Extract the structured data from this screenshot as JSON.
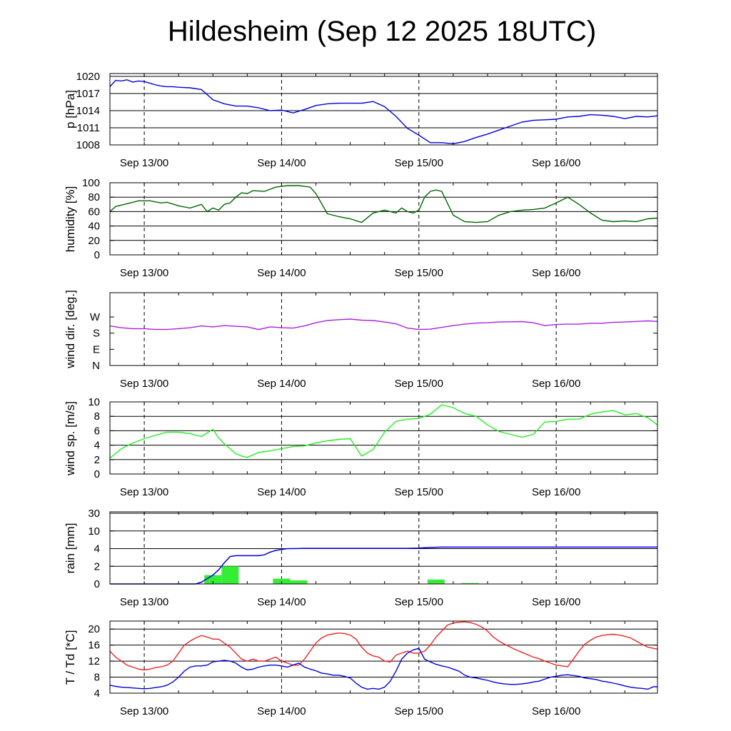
{
  "page": {
    "title": "Hildesheim (Sep 12 2025 18UTC)"
  },
  "x_tick_labels": [
    "Sep 13/00",
    "Sep 14/00",
    "Sep 15/00",
    "Sep 16/00"
  ],
  "chart_data": [
    {
      "id": "pressure",
      "type": "line",
      "ylabel": "p [hPa]",
      "ylim": [
        1008,
        1020.5
      ],
      "yticks": [
        1008,
        1011,
        1014,
        1017,
        1020
      ],
      "yticklabels": [
        "1008",
        "1011",
        "1014",
        "1017",
        "1020"
      ],
      "grid": true,
      "color": "#0000dd",
      "x_unit": "hours since Sep 12 18UTC",
      "series": [
        {
          "x": [
            0,
            1,
            2,
            3,
            4,
            5,
            6,
            7,
            8,
            9,
            10,
            11,
            12,
            14,
            16,
            18,
            20,
            22,
            24,
            26,
            28,
            30,
            32,
            34,
            36,
            38,
            40,
            42,
            44,
            46,
            48,
            50,
            52,
            54,
            56,
            58,
            60,
            62,
            64,
            66,
            68,
            70,
            72,
            74,
            76,
            78,
            80,
            82,
            84,
            86,
            88,
            90,
            92,
            94,
            95.7
          ],
          "y": [
            1018.2,
            1019.3,
            1019.2,
            1019.4,
            1019.0,
            1019.2,
            1019.1,
            1018.8,
            1018.5,
            1018.3,
            1018.2,
            1018.2,
            1018.1,
            1018.0,
            1017.7,
            1015.9,
            1015.2,
            1014.8,
            1014.8,
            1014.5,
            1014.0,
            1014.1,
            1013.6,
            1014.2,
            1014.9,
            1015.2,
            1015.3,
            1015.3,
            1015.3,
            1015.6,
            1014.7,
            1013.0,
            1010.9,
            1009.7,
            1008.4,
            1008.4,
            1008.2,
            1008.6,
            1009.3,
            1009.9,
            1010.6,
            1011.3,
            1012.0,
            1012.3,
            1012.4,
            1012.5,
            1012.9,
            1013.0,
            1013.3,
            1013.2,
            1013.0,
            1012.6,
            1013.0,
            1012.9,
            1013.1
          ]
        }
      ]
    },
    {
      "id": "humidity",
      "type": "line",
      "ylabel": "humidity [%]",
      "ylim": [
        0,
        100
      ],
      "yticks": [
        0,
        20,
        40,
        60,
        80,
        100
      ],
      "yticklabels": [
        "0",
        "20",
        "40",
        "60",
        "80",
        "100"
      ],
      "grid": true,
      "color": "#006600",
      "series": [
        {
          "x": [
            0,
            1,
            3,
            5,
            7,
            9,
            10,
            12,
            14,
            16,
            17,
            18,
            19,
            20,
            21,
            22,
            23,
            24,
            25,
            27,
            29,
            31,
            33,
            35,
            36,
            38,
            40,
            42,
            44,
            46,
            48,
            50,
            51,
            52,
            53,
            54,
            55,
            56,
            57,
            58,
            60,
            62,
            64,
            66,
            68,
            70,
            72,
            74,
            76,
            78,
            80,
            82,
            84,
            86,
            88,
            90,
            92,
            94,
            95.7
          ],
          "y": [
            60,
            67,
            71,
            75,
            75,
            72,
            73,
            68,
            65,
            70,
            60,
            65,
            62,
            70,
            72,
            80,
            86,
            85,
            89,
            88,
            94,
            96,
            96,
            94,
            85,
            57,
            53,
            50,
            45,
            58,
            62,
            58,
            65,
            60,
            58,
            62,
            80,
            88,
            90,
            88,
            55,
            46,
            45,
            46,
            55,
            60,
            62,
            63,
            65,
            72,
            80,
            70,
            58,
            48,
            46,
            47,
            46,
            50,
            51
          ]
        }
      ]
    },
    {
      "id": "wind_direction",
      "type": "line",
      "ylabel": "wind dir. [deg.]",
      "ylim": [
        0,
        405
      ],
      "yticks": [
        0,
        90,
        180,
        270
      ],
      "yticklabels": [
        "N",
        "E",
        "S",
        "W"
      ],
      "grid": false,
      "color": "#aa22dd",
      "series": [
        {
          "x": [
            0,
            2,
            4,
            6,
            8,
            10,
            12,
            14,
            16,
            18,
            20,
            22,
            24,
            26,
            28,
            30,
            32,
            34,
            36,
            38,
            40,
            42,
            44,
            46,
            48,
            50,
            52,
            54,
            56,
            58,
            60,
            62,
            64,
            66,
            68,
            70,
            72,
            74,
            76,
            78,
            80,
            82,
            84,
            86,
            88,
            90,
            92,
            94,
            95.7
          ],
          "y": [
            220,
            210,
            205,
            205,
            200,
            200,
            205,
            210,
            220,
            215,
            222,
            218,
            215,
            200,
            215,
            210,
            208,
            220,
            238,
            250,
            255,
            258,
            252,
            250,
            242,
            232,
            208,
            200,
            202,
            212,
            222,
            230,
            236,
            238,
            242,
            243,
            244,
            238,
            222,
            228,
            230,
            230,
            235,
            235,
            240,
            242,
            245,
            248,
            245
          ]
        }
      ]
    },
    {
      "id": "wind_speed",
      "type": "line",
      "ylabel": "wind sp. [m/s]",
      "ylim": [
        0,
        10
      ],
      "yticks": [
        0,
        2,
        4,
        6,
        8,
        10
      ],
      "yticklabels": [
        "0",
        "2",
        "4",
        "6",
        "8",
        "10"
      ],
      "grid": true,
      "color": "#22ee22",
      "series": [
        {
          "x": [
            0,
            2,
            4,
            6,
            8,
            10,
            12,
            14,
            16,
            17,
            18,
            19,
            20,
            21,
            22,
            23,
            24,
            26,
            28,
            30,
            32,
            34,
            36,
            38,
            40,
            42,
            44,
            46,
            48,
            50,
            52,
            54,
            56,
            58,
            60,
            62,
            64,
            66,
            68,
            70,
            72,
            74,
            76,
            78,
            80,
            82,
            84,
            86,
            88,
            90,
            92,
            94,
            95.7
          ],
          "y": [
            2.2,
            3.5,
            4.3,
            4.9,
            5.4,
            5.8,
            5.8,
            5.6,
            5.2,
            5.7,
            6.2,
            5.0,
            4.2,
            3.5,
            2.8,
            2.5,
            2.3,
            3.0,
            3.2,
            3.5,
            3.8,
            3.9,
            4.3,
            4.6,
            4.8,
            4.9,
            2.5,
            3.4,
            5.8,
            7.3,
            7.6,
            7.7,
            8.3,
            9.6,
            9.2,
            8.4,
            8.0,
            6.8,
            5.9,
            5.5,
            5.1,
            5.5,
            7.2,
            7.3,
            7.6,
            7.6,
            8.3,
            8.6,
            8.8,
            8.2,
            8.4,
            7.8,
            6.8
          ]
        }
      ]
    },
    {
      "id": "rain",
      "type": "bar+line",
      "ylabel": "rain [mm]",
      "y_scale": "piecewise",
      "yticks": [
        0,
        2,
        4,
        10,
        30
      ],
      "yticklabels": [
        "0",
        "2",
        "4",
        "10",
        "30"
      ],
      "grid": true,
      "bar_color": "#33ee33",
      "line_color": "#0000dd",
      "bars": [
        {
          "x0": 16.5,
          "x1": 19.5,
          "value": 1.0
        },
        {
          "x0": 19.5,
          "x1": 22.5,
          "value": 2.0
        },
        {
          "x0": 28.5,
          "x1": 31.5,
          "value": 0.6
        },
        {
          "x0": 31.5,
          "x1": 34.5,
          "value": 0.4
        },
        {
          "x0": 55.5,
          "x1": 58.5,
          "value": 0.5
        },
        {
          "x0": 61.5,
          "x1": 64.5,
          "value": 0.1
        }
      ],
      "cumulative": {
        "x": [
          0,
          9,
          15,
          16,
          17,
          18,
          19,
          20,
          21,
          22,
          23,
          24,
          25,
          26,
          27,
          28,
          29,
          30,
          31,
          32,
          34,
          40,
          50,
          52,
          54,
          55,
          56,
          58,
          60,
          70,
          80,
          95.7
        ],
        "y": [
          0,
          0,
          0,
          0.2,
          0.6,
          1.0,
          1.6,
          2.4,
          3.1,
          3.2,
          3.2,
          3.2,
          3.2,
          3.2,
          3.3,
          3.6,
          3.8,
          3.9,
          4.0,
          4.0,
          4.1,
          4.1,
          4.1,
          4.1,
          4.2,
          4.3,
          4.4,
          4.5,
          4.5,
          4.5,
          4.5,
          4.5
        ]
      }
    },
    {
      "id": "temperature",
      "type": "line",
      "ylabel": "T / Td [*C]",
      "ylim": [
        4,
        22
      ],
      "yticks": [
        4,
        8,
        12,
        16,
        20
      ],
      "yticklabels": [
        "4",
        "8",
        "12",
        "16",
        "20"
      ],
      "grid": true,
      "series": [
        {
          "name": "T",
          "color": "#ee2222",
          "x": [
            0,
            1,
            2,
            3,
            4,
            5,
            6,
            7,
            8,
            9,
            10,
            11,
            12,
            13,
            14,
            15,
            16,
            17,
            18,
            19,
            20,
            21,
            22,
            23,
            24,
            25,
            26,
            27,
            28,
            29,
            30,
            31,
            32,
            33,
            34,
            35,
            36,
            37,
            38,
            39,
            40,
            41,
            42,
            43,
            44,
            45,
            46,
            47,
            48,
            49,
            50,
            51,
            52,
            53,
            54,
            55,
            56,
            57,
            58,
            59,
            60,
            61,
            62,
            63,
            64,
            65,
            66,
            67,
            68,
            69,
            70,
            71,
            72,
            73,
            74,
            75,
            76,
            77,
            78,
            79,
            80,
            81,
            82,
            83,
            84,
            85,
            86,
            87,
            88,
            89,
            90,
            91,
            92,
            93,
            94,
            95,
            95.7
          ],
          "y": [
            14.5,
            13.0,
            12.0,
            11.0,
            10.5,
            10.0,
            9.8,
            10.0,
            10.4,
            10.6,
            11.0,
            12.0,
            14.0,
            16.0,
            17.0,
            17.8,
            18.4,
            18.0,
            17.5,
            17.5,
            16.5,
            15.5,
            14.0,
            12.5,
            12.0,
            12.5,
            12.0,
            12.0,
            12.5,
            13.0,
            12.0,
            11.5,
            11.0,
            11.0,
            12.5,
            14.5,
            16.5,
            17.8,
            18.5,
            18.8,
            19.0,
            18.9,
            18.5,
            17.5,
            15.5,
            14.0,
            13.3,
            13.0,
            12.0,
            11.8,
            13.5,
            14.0,
            14.5,
            14.0,
            14.0,
            14.5,
            16.0,
            18.0,
            19.5,
            21.0,
            21.5,
            21.7,
            21.8,
            21.6,
            21.2,
            20.5,
            19.5,
            18.0,
            17.0,
            16.2,
            15.5,
            14.8,
            14.2,
            13.6,
            13.0,
            12.6,
            12.0,
            11.5,
            11.0,
            10.8,
            10.6,
            12.5,
            14.5,
            16.2,
            17.2,
            18.0,
            18.4,
            18.6,
            18.7,
            18.5,
            18.2,
            17.8,
            17.0,
            16.2,
            15.5,
            15.2,
            15.0
          ]
        },
        {
          "name": "Td",
          "color": "#0000dd",
          "x": [
            0,
            1,
            2,
            3,
            4,
            5,
            6,
            7,
            8,
            9,
            10,
            11,
            12,
            13,
            14,
            15,
            16,
            17,
            18,
            19,
            20,
            21,
            22,
            23,
            24,
            25,
            26,
            27,
            28,
            29,
            30,
            31,
            32,
            33,
            34,
            35,
            36,
            37,
            38,
            39,
            40,
            41,
            42,
            43,
            44,
            45,
            46,
            47,
            48,
            49,
            50,
            51,
            52,
            53,
            54,
            55,
            56,
            57,
            58,
            59,
            60,
            61,
            62,
            63,
            64,
            65,
            66,
            67,
            68,
            69,
            70,
            71,
            72,
            73,
            74,
            75,
            76,
            77,
            78,
            79,
            80,
            81,
            82,
            83,
            84,
            85,
            86,
            87,
            88,
            89,
            90,
            91,
            92,
            93,
            94,
            95,
            95.7
          ],
          "y": [
            6.0,
            5.7,
            5.5,
            5.4,
            5.3,
            5.2,
            5.1,
            5.2,
            5.4,
            5.6,
            6.0,
            6.8,
            8.0,
            9.5,
            10.5,
            10.8,
            10.8,
            11.0,
            11.8,
            12.0,
            12.2,
            12.0,
            11.5,
            10.5,
            9.8,
            10.0,
            10.5,
            10.8,
            11.0,
            11.0,
            10.8,
            10.5,
            11.0,
            11.5,
            10.5,
            10.0,
            9.6,
            9.0,
            8.8,
            8.5,
            8.5,
            8.2,
            7.8,
            6.5,
            5.5,
            5.0,
            5.2,
            5.0,
            5.5,
            7.0,
            9.5,
            12.5,
            14.0,
            14.8,
            15.2,
            12.5,
            11.8,
            11.2,
            10.8,
            10.5,
            10.0,
            9.5,
            8.5,
            8.0,
            7.8,
            7.5,
            7.2,
            6.8,
            6.5,
            6.3,
            6.2,
            6.2,
            6.3,
            6.5,
            6.8,
            7.0,
            7.5,
            8.0,
            8.2,
            8.5,
            8.6,
            8.4,
            8.2,
            7.8,
            7.6,
            7.4,
            7.0,
            6.8,
            6.5,
            6.2,
            5.8,
            5.5,
            5.3,
            5.2,
            5.0,
            5.6,
            5.6
          ]
        }
      ]
    }
  ]
}
